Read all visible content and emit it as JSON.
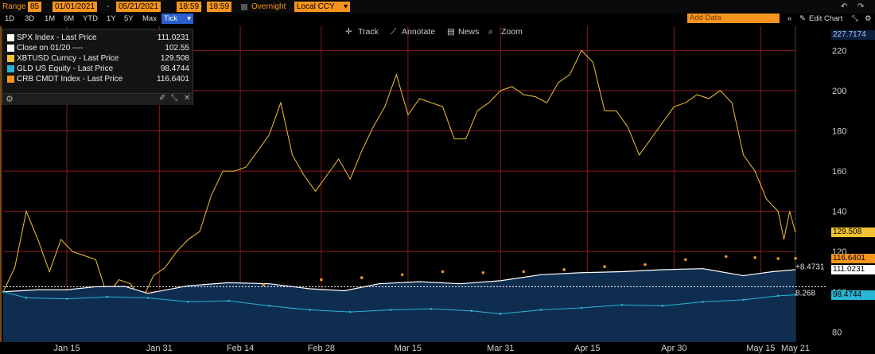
{
  "toolbar": {
    "range_label": "Range",
    "range_code": "85",
    "start_date": "01/01/2021",
    "end_date": "05/21/2021",
    "start_time": "18:59",
    "end_time": "18:59",
    "session": "Overnight",
    "currency": "Local CCY",
    "periods": [
      "1D",
      "3D",
      "1M",
      "6M",
      "YTD",
      "1Y",
      "5Y",
      "Max"
    ],
    "tick_label": "Tick",
    "add_data_placeholder": "Add Data",
    "edit_chart": "Edit Chart",
    "undo_icon": "undo-icon",
    "redo_icon": "redo-icon"
  },
  "modes": {
    "track": "Track",
    "annotate": "Annotate",
    "news": "News",
    "zoom": "Zoom"
  },
  "colors": {
    "xbt": "#f2c232",
    "gld": "#29b6d6",
    "crb": "#f7941d",
    "spx": "#ffffff",
    "spx_area": "#0e2d4f",
    "grid": "#8b1a1a",
    "axis_text": "#cfcfcf"
  },
  "chart_data": {
    "type": "line",
    "x_range": [
      "2021-01-04",
      "2021-05-21"
    ],
    "y_range": [
      75,
      232
    ],
    "y_ticks": [
      80,
      100,
      120,
      140,
      160,
      180,
      200,
      220
    ],
    "x_ticks": [
      {
        "label": "Jan 15",
        "date": "2021-01-15"
      },
      {
        "label": "Jan 31",
        "date": "2021-01-31"
      },
      {
        "label": "Feb 14",
        "date": "2021-02-14"
      },
      {
        "label": "Feb 28",
        "date": "2021-02-28"
      },
      {
        "label": "Mar 15",
        "date": "2021-03-15"
      },
      {
        "label": "Mar 31",
        "date": "2021-03-31"
      },
      {
        "label": "Apr 15",
        "date": "2021-04-15"
      },
      {
        "label": "Apr 30",
        "date": "2021-04-30"
      },
      {
        "label": "May 15",
        "date": "2021-05-15"
      },
      {
        "label": "May 21",
        "date": "2021-05-21"
      }
    ],
    "reference_lines": [
      {
        "name": "Close on 01/20",
        "value": 102.55
      }
    ],
    "axis_tags": [
      {
        "value": "227.7174",
        "y": 227.7,
        "color": "#9ec9ff",
        "bg": "#0b1e3a"
      },
      {
        "value": "129.508",
        "y": 129.5,
        "color": "#000",
        "bg": "#f2c232"
      },
      {
        "value": "116.6401",
        "y": 116.6,
        "color": "#000",
        "bg": "#f7941d"
      },
      {
        "value": "111.0231",
        "y": 111.0,
        "color": "#000",
        "bg": "#ffffff"
      },
      {
        "value": "98.4744",
        "y": 98.5,
        "color": "#000",
        "bg": "#29b6d6"
      }
    ],
    "side_labels": [
      {
        "value": "+8.4731",
        "y": 112.8
      },
      {
        "value": "8.268",
        "y": 99.8
      }
    ],
    "legend": [
      {
        "name": "SPX Index - Last Price",
        "value": "111.0231",
        "swatch": "#ffffff"
      },
      {
        "name": "Close on 01/20 ----",
        "value": "102.55",
        "swatch": "#ffffff"
      },
      {
        "name": "XBTUSD Curncy - Last Price",
        "value": "129.508",
        "swatch": "#f2c232"
      },
      {
        "name": "GLD US Equity - Last Price",
        "value": "98.4744",
        "swatch": "#29b6d6"
      },
      {
        "name": "CRB CMDT Index - Last Price",
        "value": "116.6401",
        "swatch": "#f7941d"
      }
    ],
    "series": [
      {
        "name": "XBTUSD Curncy - Last Price",
        "color": "#f2c232",
        "style": "line",
        "points": [
          [
            "2021-01-04",
            100
          ],
          [
            "2021-01-06",
            112
          ],
          [
            "2021-01-08",
            140
          ],
          [
            "2021-01-10",
            126
          ],
          [
            "2021-01-12",
            110
          ],
          [
            "2021-01-14",
            126
          ],
          [
            "2021-01-16",
            120
          ],
          [
            "2021-01-18",
            118
          ],
          [
            "2021-01-20",
            116
          ],
          [
            "2021-01-22",
            98
          ],
          [
            "2021-01-24",
            106
          ],
          [
            "2021-01-26",
            104
          ],
          [
            "2021-01-28",
            96
          ],
          [
            "2021-01-30",
            108
          ],
          [
            "2021-02-01",
            112
          ],
          [
            "2021-02-03",
            120
          ],
          [
            "2021-02-05",
            126
          ],
          [
            "2021-02-07",
            130
          ],
          [
            "2021-02-09",
            148
          ],
          [
            "2021-02-11",
            160
          ],
          [
            "2021-02-13",
            160
          ],
          [
            "2021-02-15",
            162
          ],
          [
            "2021-02-17",
            170
          ],
          [
            "2021-02-19",
            178
          ],
          [
            "2021-02-21",
            194
          ],
          [
            "2021-02-23",
            168
          ],
          [
            "2021-02-25",
            158
          ],
          [
            "2021-02-27",
            150
          ],
          [
            "2021-03-01",
            158
          ],
          [
            "2021-03-03",
            166
          ],
          [
            "2021-03-05",
            156
          ],
          [
            "2021-03-07",
            170
          ],
          [
            "2021-03-09",
            182
          ],
          [
            "2021-03-11",
            192
          ],
          [
            "2021-03-13",
            208
          ],
          [
            "2021-03-15",
            188
          ],
          [
            "2021-03-17",
            196
          ],
          [
            "2021-03-19",
            194
          ],
          [
            "2021-03-21",
            192
          ],
          [
            "2021-03-23",
            176
          ],
          [
            "2021-03-25",
            176
          ],
          [
            "2021-03-27",
            190
          ],
          [
            "2021-03-29",
            194
          ],
          [
            "2021-03-31",
            200
          ],
          [
            "2021-04-02",
            202
          ],
          [
            "2021-04-04",
            198
          ],
          [
            "2021-04-06",
            197
          ],
          [
            "2021-04-08",
            194
          ],
          [
            "2021-04-10",
            204
          ],
          [
            "2021-04-12",
            208
          ],
          [
            "2021-04-14",
            220
          ],
          [
            "2021-04-16",
            214
          ],
          [
            "2021-04-18",
            190
          ],
          [
            "2021-04-20",
            190
          ],
          [
            "2021-04-22",
            182
          ],
          [
            "2021-04-24",
            168
          ],
          [
            "2021-04-26",
            176
          ],
          [
            "2021-04-28",
            184
          ],
          [
            "2021-04-30",
            192
          ],
          [
            "2021-05-02",
            194
          ],
          [
            "2021-05-04",
            198
          ],
          [
            "2021-05-06",
            196
          ],
          [
            "2021-05-08",
            200
          ],
          [
            "2021-05-10",
            194
          ],
          [
            "2021-05-12",
            168
          ],
          [
            "2021-05-14",
            160
          ],
          [
            "2021-05-16",
            146
          ],
          [
            "2021-05-18",
            140
          ],
          [
            "2021-05-19",
            126
          ],
          [
            "2021-05-20",
            140
          ],
          [
            "2021-05-21",
            129.5
          ]
        ]
      },
      {
        "name": "SPX Index - Last Price",
        "color": "#ffffff",
        "style": "area",
        "points": [
          [
            "2021-01-04",
            100
          ],
          [
            "2021-01-10",
            101
          ],
          [
            "2021-01-15",
            101
          ],
          [
            "2021-01-20",
            102.5
          ],
          [
            "2021-01-25",
            102.7
          ],
          [
            "2021-01-29",
            99.2
          ],
          [
            "2021-02-05",
            103
          ],
          [
            "2021-02-12",
            104.5
          ],
          [
            "2021-02-19",
            104
          ],
          [
            "2021-02-26",
            101.5
          ],
          [
            "2021-03-04",
            100.5
          ],
          [
            "2021-03-10",
            104
          ],
          [
            "2021-03-17",
            105
          ],
          [
            "2021-03-24",
            104
          ],
          [
            "2021-03-31",
            105.5
          ],
          [
            "2021-04-07",
            108.5
          ],
          [
            "2021-04-14",
            109.5
          ],
          [
            "2021-04-21",
            110
          ],
          [
            "2021-04-28",
            111
          ],
          [
            "2021-05-05",
            111.5
          ],
          [
            "2021-05-12",
            108
          ],
          [
            "2021-05-17",
            110
          ],
          [
            "2021-05-21",
            111.0
          ]
        ]
      },
      {
        "name": "CRB CMDT Index - Last Price",
        "color": "#f7941d",
        "style": "dots",
        "points": [
          [
            "2021-02-18",
            103.5
          ],
          [
            "2021-02-28",
            106
          ],
          [
            "2021-03-07",
            107
          ],
          [
            "2021-03-14",
            108.5
          ],
          [
            "2021-03-21",
            110
          ],
          [
            "2021-03-28",
            109.5
          ],
          [
            "2021-04-04",
            110
          ],
          [
            "2021-04-11",
            111
          ],
          [
            "2021-04-18",
            112.5
          ],
          [
            "2021-04-25",
            113.5
          ],
          [
            "2021-05-02",
            116
          ],
          [
            "2021-05-09",
            117.5
          ],
          [
            "2021-05-14",
            117
          ],
          [
            "2021-05-18",
            116.5
          ],
          [
            "2021-05-21",
            116.6
          ]
        ]
      },
      {
        "name": "GLD US Equity - Last Price",
        "color": "#29b6d6",
        "style": "line",
        "points": [
          [
            "2021-01-04",
            100
          ],
          [
            "2021-01-08",
            97
          ],
          [
            "2021-01-15",
            96.5
          ],
          [
            "2021-01-22",
            97.5
          ],
          [
            "2021-01-29",
            97
          ],
          [
            "2021-02-05",
            95
          ],
          [
            "2021-02-12",
            95.5
          ],
          [
            "2021-02-19",
            93
          ],
          [
            "2021-02-26",
            91
          ],
          [
            "2021-03-05",
            90
          ],
          [
            "2021-03-12",
            91
          ],
          [
            "2021-03-19",
            91.5
          ],
          [
            "2021-03-26",
            90.5
          ],
          [
            "2021-03-31",
            89
          ],
          [
            "2021-04-07",
            91
          ],
          [
            "2021-04-14",
            92
          ],
          [
            "2021-04-21",
            93.5
          ],
          [
            "2021-04-28",
            93
          ],
          [
            "2021-05-05",
            95
          ],
          [
            "2021-05-12",
            96
          ],
          [
            "2021-05-18",
            98
          ],
          [
            "2021-05-21",
            98.5
          ]
        ]
      }
    ]
  }
}
